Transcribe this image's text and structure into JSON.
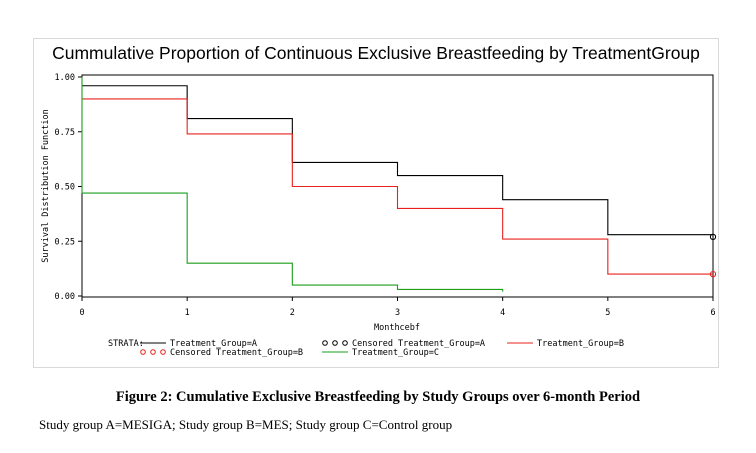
{
  "chart_data": {
    "type": "line",
    "title": "Cummulative Proportion of Continuous Exclusive Breastfeeding by TreatmentGroup",
    "xlabel": "Monthcebf",
    "ylabel": "Survival Distribution Function",
    "xlim": [
      0,
      6
    ],
    "ylim": [
      0,
      1
    ],
    "x_ticks": [
      "0",
      "1",
      "2",
      "3",
      "4",
      "5",
      "6"
    ],
    "y_ticks": [
      "0.00",
      "0.25",
      "0.50",
      "0.75",
      "1.00"
    ],
    "grid": false,
    "step": true,
    "series": [
      {
        "name": "Treatment_Group=A",
        "color": "#000000",
        "x": [
          0,
          1,
          2,
          3,
          4,
          5,
          6
        ],
        "y": [
          0.96,
          0.81,
          0.61,
          0.55,
          0.44,
          0.28,
          0.27
        ]
      },
      {
        "name": "Treatment_Group=B",
        "color": "#e8211c",
        "x": [
          0,
          1,
          2,
          3,
          4,
          5,
          6
        ],
        "y": [
          0.9,
          0.74,
          0.5,
          0.4,
          0.26,
          0.1,
          0.1
        ]
      },
      {
        "name": "Treatment_Group=C",
        "color": "#1a9e1a",
        "x": [
          0,
          1,
          2,
          3,
          4
        ],
        "y": [
          0.47,
          0.15,
          0.05,
          0.03,
          0.02
        ],
        "start": 1.0
      }
    ],
    "censored": [
      {
        "name": "Censored Treatment_Group=A",
        "color": "#000000",
        "x": 6,
        "y": 0.27
      },
      {
        "name": "Censored Treatment_Group=B",
        "color": "#e8211c",
        "x": 6,
        "y": 0.1
      }
    ],
    "legend": {
      "title": "STRATA:",
      "placement": "bottom",
      "entries": [
        {
          "label": "Treatment_Group=A",
          "kind": "line",
          "color": "#000000"
        },
        {
          "label": "Censored Treatment_Group=A",
          "kind": "marker",
          "color": "#000000"
        },
        {
          "label": "Treatment_Group=B",
          "kind": "line",
          "color": "#e8211c"
        },
        {
          "label": "Censored Treatment_Group=B",
          "kind": "marker",
          "color": "#e8211c"
        },
        {
          "label": "Treatment_Group=C",
          "kind": "line",
          "color": "#1a9e1a"
        }
      ]
    }
  },
  "caption": "Figure 2: Cumulative Exclusive Breastfeeding by Study Groups over 6-month Period",
  "note": "Study group A=MESIGA; Study group B=MES; Study group C=Control group"
}
